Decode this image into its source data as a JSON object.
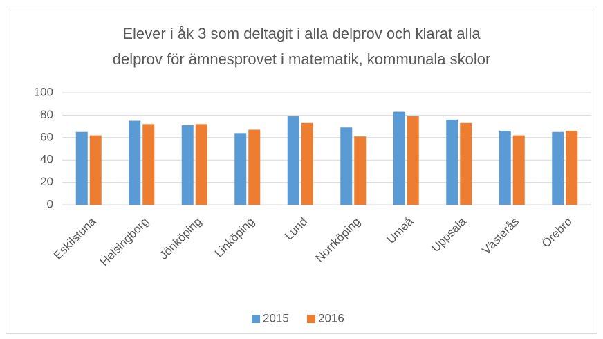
{
  "chart_data": {
    "type": "bar",
    "title": [
      "Elever i åk 3 som deltagit i alla delprov och klarat alla",
      "delprov för ämnesprovet i matematik, kommunala skolor"
    ],
    "categories": [
      "Eskilstuna",
      "Helsingborg",
      "Jönköping",
      "Linköping",
      "Lund",
      "Norrköping",
      "Umeå",
      "Uppsala",
      "Västerås",
      "Örebro"
    ],
    "series": [
      {
        "name": "2015",
        "color": "#5b9bd5",
        "values": [
          65,
          75,
          71,
          64,
          79,
          69,
          83,
          76,
          66,
          65
        ]
      },
      {
        "name": "2016",
        "color": "#ed7d31",
        "values": [
          62,
          72,
          72,
          67,
          73,
          61,
          79,
          73,
          62,
          66
        ]
      }
    ],
    "ylim": [
      0,
      100
    ],
    "yticks": [
      0,
      20,
      40,
      60,
      80,
      100
    ],
    "grid": true,
    "legend": "bottom"
  }
}
